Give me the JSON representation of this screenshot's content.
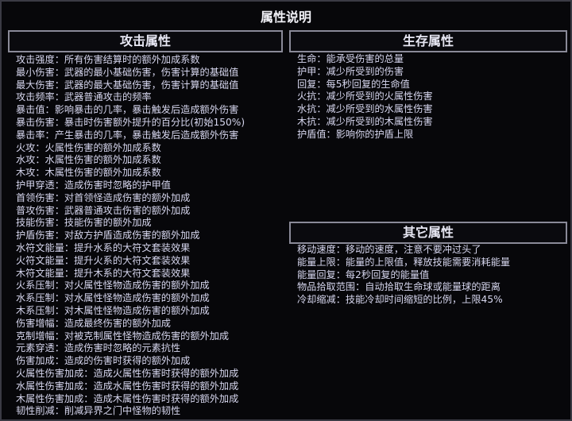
{
  "title": "属性说明",
  "attack": {
    "header": "攻击属性",
    "items": [
      "攻击强度：所有伤害结算时的额外加成系数",
      "最小伤害：武器的最小基础伤害，伤害计算的基础值",
      "最大伤害：武器的最大基础伤害，伤害计算的基础值",
      "攻击频率：武器普通攻击的频率",
      "暴击值：影响暴击的几率，暴击触发后造成额外伤害",
      "暴击伤害：暴击时伤害额外提升的百分比(初始150%)",
      "暴击率：产生暴击的几率，暴击触发后造成额外伤害",
      "火攻：火属性伤害的额外加成系数",
      "水攻：水属性伤害的额外加成系数",
      "木攻：木属性伤害的额外加成系数",
      "护甲穿透：造成伤害时忽略的护甲值",
      "首领伤害：对首领怪造成伤害的额外加成",
      "普攻伤害：武器普通攻击伤害的额外加成",
      "技能伤害：技能伤害的额外加成",
      "护盾伤害：对敌方护盾造成伤害的额外加成",
      "水符文能量：提升水系的大符文套装效果",
      "火符文能量：提升火系的大符文套装效果",
      "木符文能量：提升木系的大符文套装效果",
      "火系压制：对火属性怪物造成伤害的额外加成",
      "水系压制：对水属性怪物造成伤害的额外加成",
      "木系压制：对木属性怪物造成伤害的额外加成",
      "伤害增幅：造成最终伤害的额外加成",
      "克制增幅：对被克制属性怪物造成伤害的额外加成",
      "元素穿透：造成伤害时忽略的元素抗性",
      "伤害加成：造成的伤害时获得的额外加成",
      "火属性伤害加成：造成火属性伤害时获得的额外加成",
      "水属性伤害加成：造成水属性伤害时获得的额外加成",
      "木属性伤害加成：造成木属性伤害时获得的额外加成",
      "韧性削减：削减异界之门中怪物的韧性"
    ]
  },
  "survival": {
    "header": "生存属性",
    "items": [
      "生命：能承受伤害的总量",
      "护甲：减少所受到的伤害",
      "回复：每5秒回复的生命值",
      "火抗：减少所受到的火属性伤害",
      "水抗：减少所受到的水属性伤害",
      "木抗：减少所受到的木属性伤害",
      "护盾值：影响你的护盾上限"
    ]
  },
  "other": {
    "header": "其它属性",
    "items": [
      "移动速度：移动的速度，注意不要冲过头了",
      "能量上限：能量的上限值，释放技能需要消耗能量",
      "能量回复：每2秒回复的能量值",
      "物品拾取范围：自动拾取生命球或能量球的距离",
      "冷却缩减：技能冷却时间缩短的比例，上限45%"
    ]
  }
}
